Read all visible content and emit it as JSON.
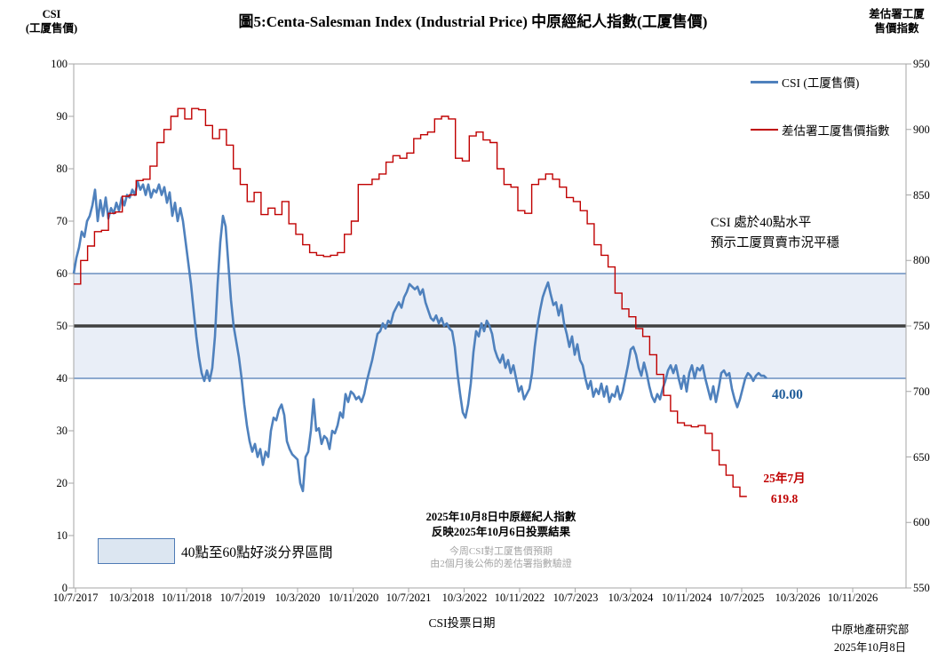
{
  "header": {
    "title": "圖5:Centa-Salesman Index (Industrial Price)  中原經紀人指數(工厦售價)",
    "left_axis_title_line1": "CSI",
    "left_axis_title_line2": "(工厦售價)",
    "right_axis_title_line1": "差估署工厦",
    "right_axis_title_line2": "售價指數"
  },
  "annotations": {
    "csi_note_line1": "CSI 處於40點水平",
    "csi_note_line2": "預示工厦買賣市況平穩",
    "csi_last_value": "40.00",
    "rvd_last_line1": "25年7月",
    "rvd_last_line2": "619.8",
    "band_legend": "40點至60點好淡分界區間",
    "result_line1": "2025年10月8日中原經紀人指數",
    "result_line2": "反映2025年10月6日投票結果",
    "gray_line1": "今周CSI對工厦售價預期",
    "gray_line2": "由2個月後公佈的差估署指數驗證"
  },
  "footer": {
    "credit_line1": "中原地產研究部",
    "credit_line2": "2025年10月8日",
    "x_axis_title": "CSI投票日期"
  },
  "chart_data": {
    "type": "line",
    "title": "圖5:Centa-Salesman Index (Industrial Price)  中原經紀人指數(工厦售價)",
    "xlabel": "CSI投票日期",
    "ylabel_left": "CSI (工厦售價)",
    "ylabel_right": "差估署工厦售價指數",
    "ylim_left": [
      0,
      100
    ],
    "ylim_right": [
      550,
      950
    ],
    "grid": false,
    "legend_position": "top-right",
    "x_tick_labels": [
      "10/7/2017",
      "10/3/2018",
      "10/11/2018",
      "10/7/2019",
      "10/3/2020",
      "10/11/2020",
      "10/7/2021",
      "10/3/2022",
      "10/11/2022",
      "10/7/2023",
      "10/3/2024",
      "10/11/2024",
      "10/7/2025",
      "10/3/2026",
      "10/11/2026"
    ],
    "y_left_ticks": [
      100,
      90,
      80,
      70,
      60,
      50,
      40,
      30,
      20,
      10,
      0
    ],
    "y_right_ticks": [
      950,
      900,
      850,
      800,
      750,
      700,
      650,
      600,
      550
    ],
    "band": {
      "axis": "left",
      "from": 40,
      "to": 60,
      "mid_line": 50,
      "fill": "#E9EEF7",
      "edge_color": "#4E7AB5",
      "mid_color": "#404040",
      "label": "40點至60點好淡分界區間"
    },
    "series": [
      {
        "name": "CSI (工厦售價)",
        "axis": "left",
        "color": "#4F81BD",
        "line_width": 2.6,
        "start": "10/7/2017",
        "cadence": "weekly (approx., plotted every ~12 days)",
        "last_value": 40.0,
        "values": [
          60,
          63,
          65,
          68,
          67,
          70,
          71,
          73,
          76,
          70,
          74,
          71,
          74.5,
          70.5,
          72.5,
          71.5,
          73.5,
          72,
          74.5,
          73,
          75,
          74.5,
          76,
          75,
          77.5,
          76,
          77,
          75,
          77,
          74.5,
          76,
          75.5,
          77,
          75,
          76.5,
          73.5,
          75.5,
          71,
          73.5,
          70,
          72.5,
          70,
          66,
          62,
          58,
          53,
          48,
          44,
          41,
          39.5,
          41.5,
          39.5,
          42,
          48,
          58,
          66,
          71,
          69,
          62,
          55,
          50,
          47,
          44,
          40,
          35,
          31,
          28,
          26,
          27.5,
          25,
          26.5,
          23.5,
          26,
          25,
          30,
          32.5,
          32,
          34,
          35,
          33,
          28,
          26.5,
          25.5,
          25,
          24.5,
          20,
          18.5,
          25,
          26,
          30,
          36,
          30,
          30.5,
          27.5,
          29,
          28.5,
          26.5,
          30,
          29.5,
          31,
          33.5,
          32.5,
          37,
          35.5,
          37.5,
          37,
          36,
          36.5,
          35.5,
          37,
          39.5,
          41.5,
          43.5,
          46,
          48.5,
          49,
          50.5,
          49.5,
          51,
          50.5,
          52.5,
          53.5,
          54.5,
          53.5,
          55.5,
          56.5,
          58,
          57.5,
          57,
          57.5,
          56,
          57,
          54.5,
          53,
          51.5,
          51,
          52,
          50.5,
          51.5,
          50,
          50.5,
          49.5,
          49,
          46,
          41,
          37,
          33.5,
          32.5,
          35,
          39,
          45,
          49,
          48,
          50.5,
          49,
          51,
          50,
          48.5,
          45.5,
          44,
          43,
          44.5,
          42,
          43.5,
          41,
          42.5,
          40,
          37.5,
          38.5,
          36,
          37,
          38,
          41,
          46,
          50,
          53,
          55.5,
          57,
          58.3,
          56,
          54,
          54.5,
          52,
          54,
          50.5,
          48.5,
          46,
          48,
          44.5,
          46.5,
          43.5,
          42.5,
          40,
          38,
          39.5,
          36.5,
          38,
          37,
          39,
          36.5,
          38.5,
          35.5,
          37,
          36.5,
          38.5,
          36,
          37.5,
          40,
          42.5,
          45.5,
          46,
          44.5,
          42,
          40.5,
          43,
          41,
          38.5,
          36.5,
          35.5,
          37,
          36,
          38,
          39.5,
          41.5,
          42.5,
          41,
          42.5,
          40,
          38,
          40.5,
          37.5,
          41,
          42.5,
          40,
          42,
          41.5,
          42.5,
          40,
          38,
          36,
          38.5,
          35.5,
          38,
          41,
          41.5,
          40.5,
          41,
          38,
          36,
          34.5,
          36,
          38,
          40,
          41,
          40.5,
          39.5,
          40.5,
          41,
          40.5,
          40.5,
          40
        ]
      },
      {
        "name": "差估署工厦售價指數",
        "axis": "right",
        "color": "#C00000",
        "line_width": 1.4,
        "style": "step-monthly",
        "start": "7/2017",
        "cadence": "monthly",
        "last_label": "25年7月 619.8",
        "last_value": 619.8,
        "values": [
          782,
          800,
          811,
          822,
          823,
          836,
          837,
          849,
          850,
          861,
          862,
          872,
          890,
          900,
          910,
          916,
          908,
          916,
          915,
          903,
          893,
          900,
          888,
          870,
          858,
          845,
          852,
          835,
          840,
          835,
          845,
          828,
          820,
          812,
          806,
          804,
          803,
          804,
          806,
          820,
          830,
          858,
          858,
          862,
          866,
          875,
          880,
          878,
          882,
          893,
          896,
          898,
          908,
          910,
          908,
          878,
          876,
          895,
          898,
          892,
          890,
          870,
          858,
          856,
          838,
          836,
          858,
          862,
          866,
          862,
          856,
          848,
          845,
          838,
          828,
          812,
          804,
          795,
          775,
          763,
          757,
          748,
          742,
          728,
          713,
          697,
          685,
          676,
          674,
          673,
          674,
          668,
          655,
          644,
          636,
          627,
          619.8
        ]
      }
    ]
  }
}
